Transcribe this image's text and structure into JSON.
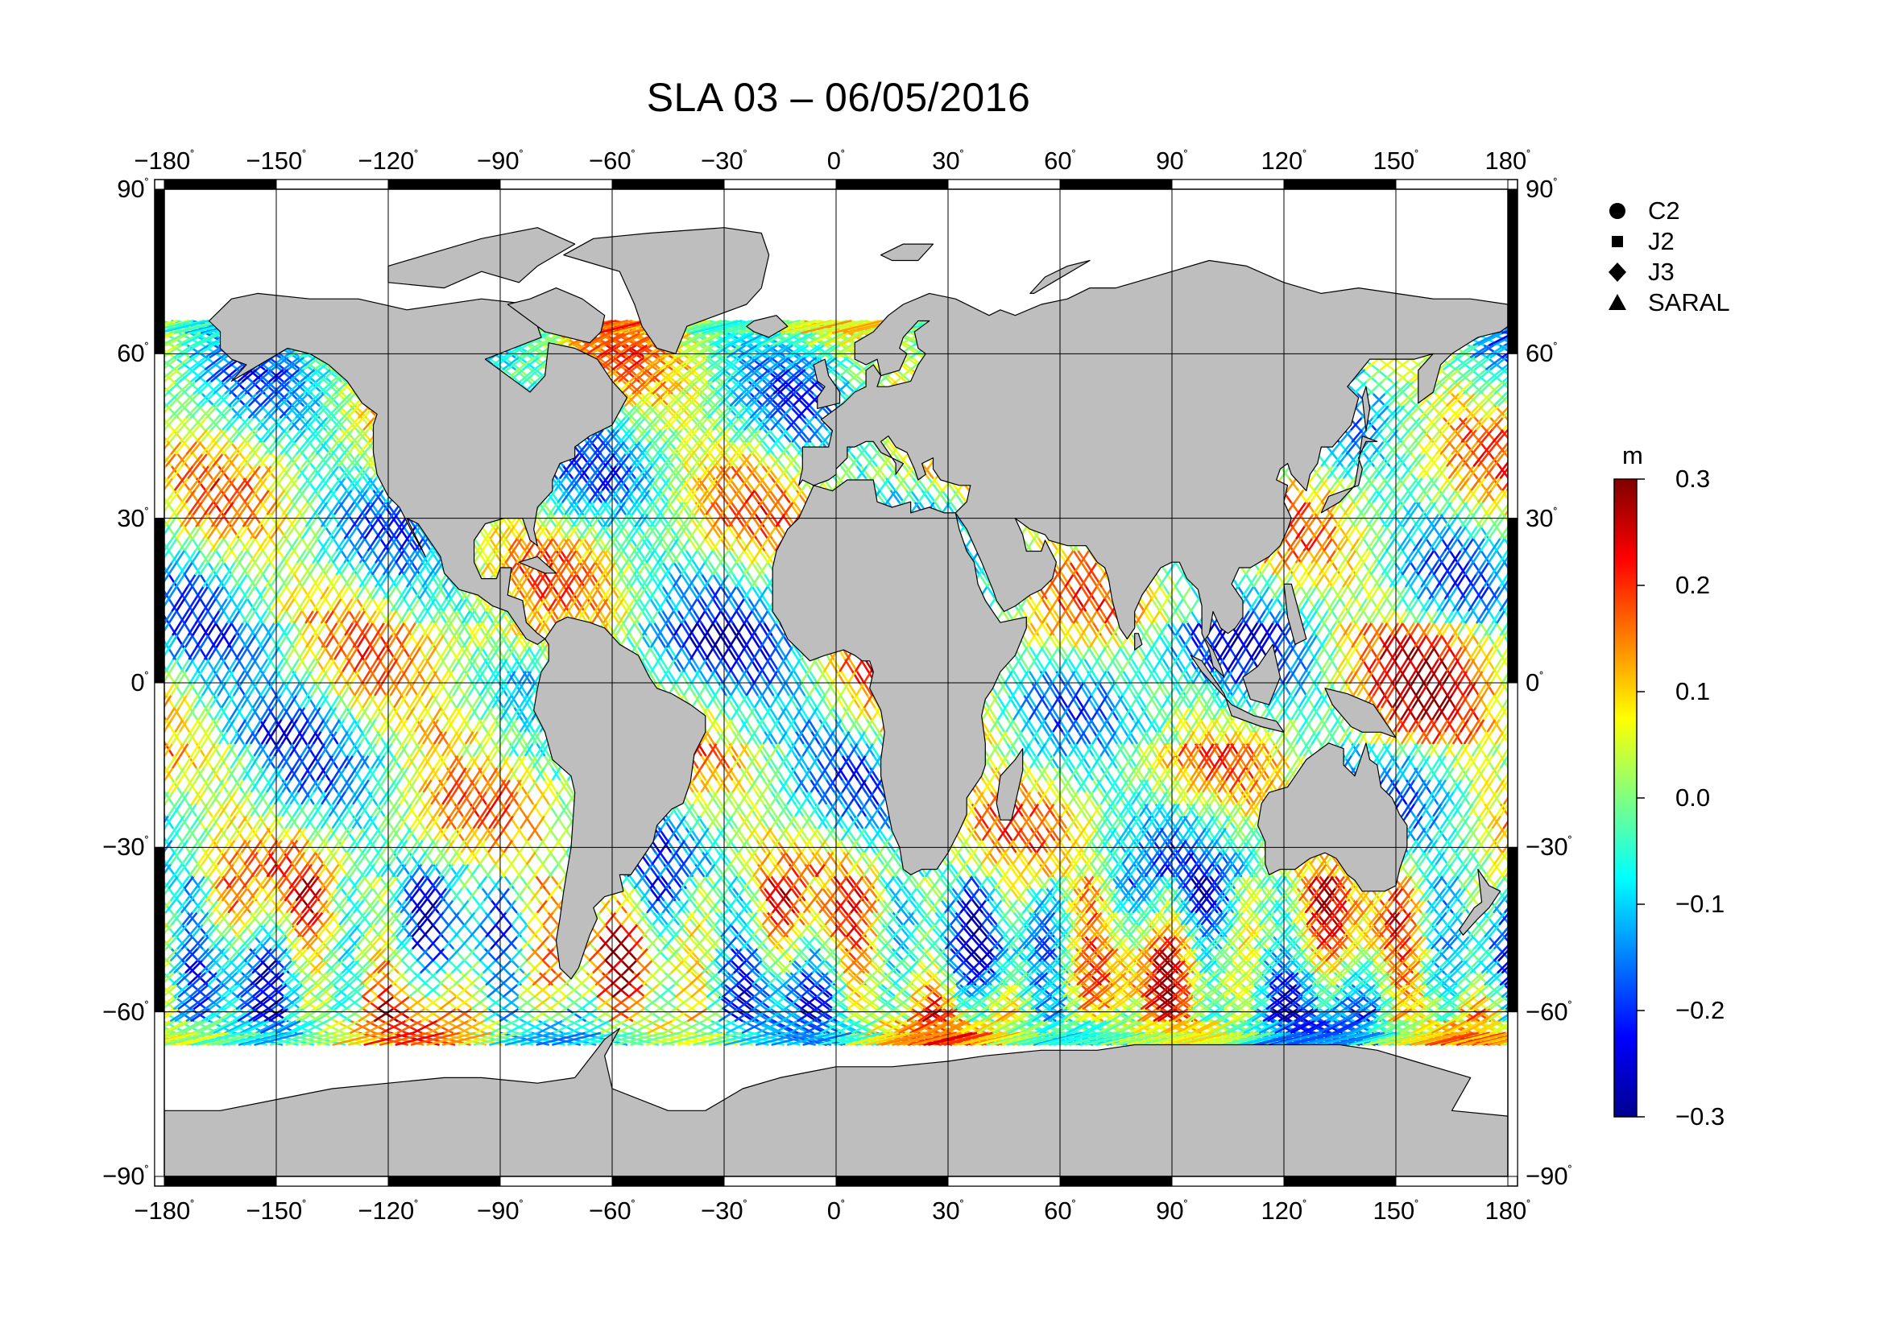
{
  "title": "SLA 03 – 06/05/2016",
  "map": {
    "projection": "equirectangular",
    "lon_range": [
      -180,
      180
    ],
    "lat_range": [
      -90,
      90
    ],
    "land_color": "#bebebe",
    "coastline_color": "#000000",
    "grid": true,
    "lon_ticks": [
      "−180",
      "−150",
      "−120",
      "−90",
      "−60",
      "−30",
      "0",
      "30",
      "60",
      "90",
      "120",
      "150",
      "180"
    ],
    "lat_ticks_left": [
      "90",
      "60",
      "30",
      "0",
      "−30",
      "−60",
      "−90"
    ],
    "lat_ticks_right": [
      "90",
      "60",
      "30",
      "0",
      "−30",
      "−60",
      "−90"
    ],
    "degree_symbol": "˚"
  },
  "legend": [
    {
      "label": "C2",
      "symbol": "circle"
    },
    {
      "label": "J2",
      "symbol": "square"
    },
    {
      "label": "J3",
      "symbol": "diamond"
    },
    {
      "label": "SARAL",
      "symbol": "triangle"
    }
  ],
  "colorbar": {
    "unit": "m",
    "min": -0.3,
    "max": 0.3,
    "tick_labels": [
      "0.3",
      "0.2",
      "0.1",
      "0.0",
      "−0.1",
      "−0.2",
      "−0.3"
    ],
    "colormap": [
      "#00008f",
      "#0000ff",
      "#0080ff",
      "#00ffff",
      "#80ff80",
      "#ffff00",
      "#ff8000",
      "#ff0000",
      "#800000"
    ]
  }
}
